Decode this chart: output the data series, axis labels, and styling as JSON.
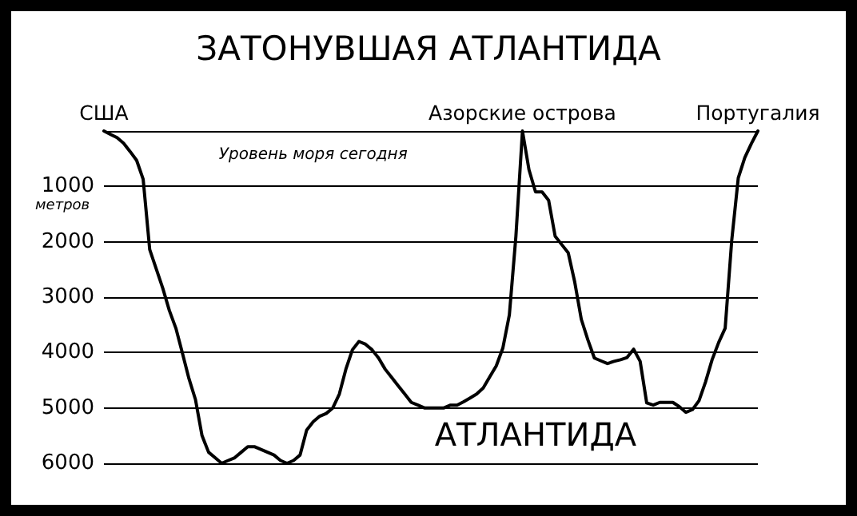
{
  "chart_data": {
    "type": "line",
    "title": "ЗАТОНУВШАЯ АТЛАНТИДА",
    "ylabel": "метров",
    "categories": [
      null,
      null,
      null,
      null,
      null,
      null,
      null,
      null,
      null,
      null,
      null,
      null,
      null,
      null,
      null,
      null,
      null,
      null,
      null,
      null,
      null,
      null,
      null,
      null,
      null,
      null,
      null,
      null,
      null,
      null,
      null,
      null,
      null,
      null,
      null,
      null,
      null,
      null,
      null,
      null,
      null,
      null,
      null,
      null,
      null,
      null,
      null,
      null,
      null,
      null,
      null,
      null,
      null,
      null,
      null,
      null,
      null,
      null,
      null,
      null,
      null,
      null,
      null,
      null,
      null,
      null,
      null,
      null,
      null,
      null,
      null,
      null,
      null,
      null,
      null,
      null,
      null,
      null,
      null,
      null,
      null,
      null,
      null,
      null,
      null,
      null,
      null,
      null,
      null,
      null,
      null,
      null,
      null,
      null,
      null,
      null,
      null,
      null,
      null,
      null,
      null
    ],
    "series": [
      {
        "color": "#000000",
        "values": [
          0,
          60,
          120,
          220,
          370,
          530,
          870,
          2140,
          2490,
          2840,
          3240,
          3560,
          4010,
          4470,
          4850,
          5500,
          5800,
          5900,
          6000,
          5950,
          5900,
          5800,
          5700,
          5700,
          5750,
          5800,
          5850,
          5950,
          6000,
          5950,
          5850,
          5400,
          5250,
          5150,
          5100,
          5000,
          4750,
          4300,
          3950,
          3800,
          3850,
          3950,
          4100,
          4300,
          4450,
          4600,
          4750,
          4900,
          4950,
          5000,
          5000,
          5000,
          5000,
          4950,
          4950,
          4890,
          4820,
          4750,
          4640,
          4440,
          4240,
          3920,
          3320,
          1900,
          0,
          700,
          1100,
          1100,
          1250,
          1900,
          2050,
          2200,
          2730,
          3400,
          3770,
          4100,
          4150,
          4200,
          4160,
          4130,
          4090,
          3940,
          4160,
          4910,
          4950,
          4900,
          4900,
          4900,
          4980,
          5080,
          5030,
          4870,
          4530,
          4130,
          3820,
          3560,
          1980,
          850,
          480,
          230,
          0
        ]
      }
    ],
    "ylim": [
      6000,
      0
    ],
    "yticks": [
      {
        "value": 0,
        "label": null
      },
      1000,
      2000,
      3000,
      4000,
      5000,
      6000
    ],
    "tick_labels": "y",
    "grid": "y",
    "line_style": "solid",
    "annotations": [
      "США",
      "Азорские острова",
      "Португалия",
      "Уровень моря сегодня",
      "АТЛАНТИДА"
    ]
  }
}
